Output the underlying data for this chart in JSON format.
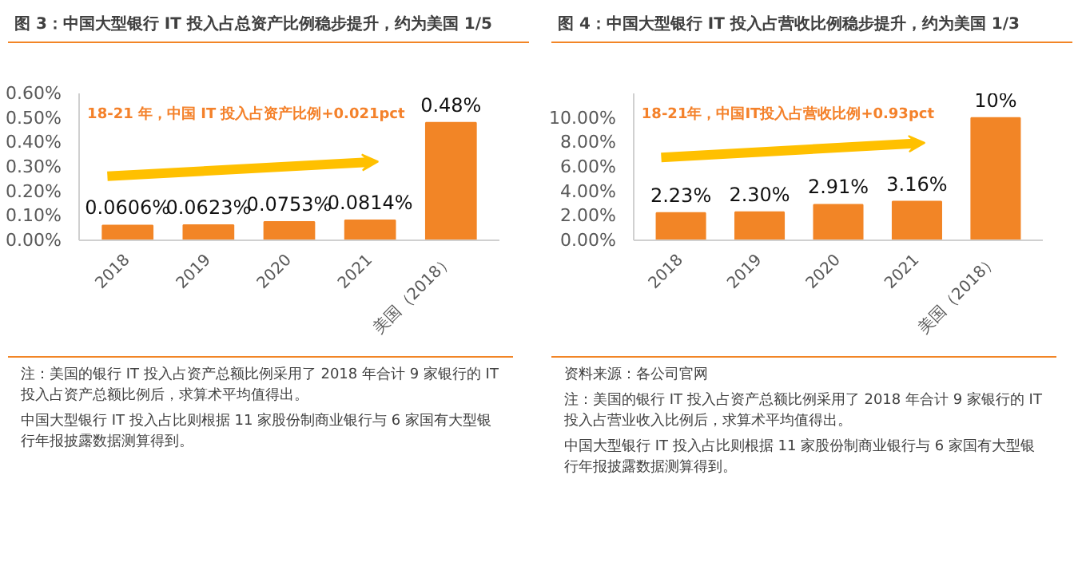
{
  "chart_data": [
    {
      "type": "bar",
      "title": "图 3：中国大型银行 IT 投入占总资产比例稳步提升，约为美国 1/5",
      "categories": [
        "2018",
        "2019",
        "2020",
        "2021",
        "美国（2018）"
      ],
      "values": [
        0.0606,
        0.0623,
        0.0753,
        0.0814,
        0.48
      ],
      "color": "#f28526",
      "value_labels": [
        "0.0606%",
        "0.0623%",
        "0.0753%",
        "0.0814%",
        "0.48%"
      ],
      "ylim": [
        0,
        0.6
      ],
      "yticks": [
        {
          "value": 0,
          "label": "0.00%"
        },
        {
          "value": 0.1,
          "label": "0.10%"
        },
        {
          "value": 0.2,
          "label": "0.20%"
        },
        {
          "value": 0.3,
          "label": "0.30%"
        },
        {
          "value": 0.4,
          "label": "0.40%"
        },
        {
          "value": 0.5,
          "label": "0.50%"
        },
        {
          "value": 0.6,
          "label": "0.60%"
        }
      ],
      "annotations": [
        "18-21 年，中国 IT 投入占资产比例+0.021pct",
        "注：美国的银行 IT 投入占资产总额比例采用了 2018 年合计 9 家银行的 IT 投入占资产总额比例后，求算术平均值得出。",
        "中国大型银行 IT 投入占比则根据 11 家股份制商业银行与 6 家国有大型银行年报披露数据测算得到。"
      ]
    },
    {
      "type": "bar",
      "title": "图 4：中国大型银行 IT 投入占营收比例稳步提升，约为美国 1/3",
      "categories": [
        "2018",
        "2019",
        "2020",
        "2021",
        "美国（2018）"
      ],
      "values": [
        2.23,
        2.3,
        2.91,
        3.16,
        10
      ],
      "color": "#f28526",
      "value_labels": [
        "2.23%",
        "2.30%",
        "2.91%",
        "3.16%",
        "10%"
      ],
      "ylim": [
        0,
        12
      ],
      "yticks": [
        {
          "value": 0,
          "label": "0.00%"
        },
        {
          "value": 2,
          "label": "2.00%"
        },
        {
          "value": 4,
          "label": "4.00%"
        },
        {
          "value": 6,
          "label": "6.00%"
        },
        {
          "value": 8,
          "label": "8.00%"
        },
        {
          "value": 10,
          "label": "10.00%"
        }
      ],
      "annotations": [
        "18-21年，中国IT投入占营收比例+0.93pct",
        "资料来源：各公司官网",
        "注：美国的银行 IT 投入占资产总额比例采用了 2018 年合计 9 家银行的 IT 投入占营业收入比例后，求算术平均值得出。",
        "中国大型银行 IT 投入占比则根据 11 家股份制商业银行与 6 家国有大型银行年报披露数据测算得到。"
      ]
    }
  ]
}
